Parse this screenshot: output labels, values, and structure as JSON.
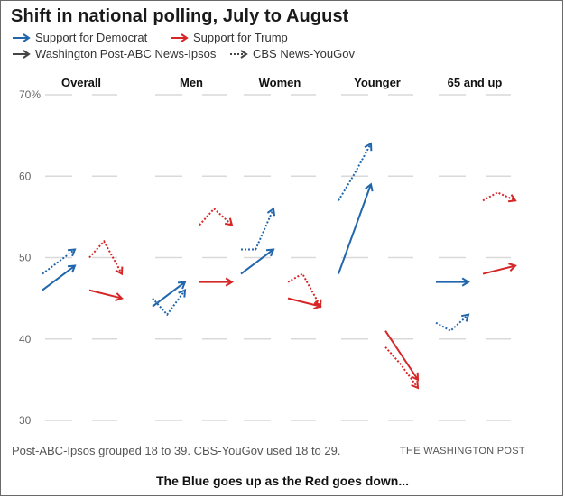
{
  "chart_data": {
    "type": "line",
    "title": "Shift in national polling, July to August",
    "legend": {
      "democrat": "Support for Democrat",
      "trump": "Support for Trump",
      "wapo": "Washington Post-ABC News-Ipsos",
      "cbs": "CBS News-YouGov"
    },
    "y_ticks": [
      "70%",
      "60",
      "50",
      "40",
      "30"
    ],
    "ylim": [
      30,
      70
    ],
    "groups": [
      "Overall",
      "Men",
      "Women",
      "Younger",
      "65 and up"
    ],
    "series": [
      {
        "group": "Overall",
        "candidate": "democrat",
        "poll": "wapo",
        "from": 46,
        "to": 49
      },
      {
        "group": "Overall",
        "candidate": "democrat",
        "poll": "cbs",
        "from": 48,
        "to": 51
      },
      {
        "group": "Overall",
        "candidate": "trump",
        "poll": "wapo",
        "from": 46,
        "to": 45
      },
      {
        "group": "Overall",
        "candidate": "trump",
        "poll": "cbs",
        "from": 50,
        "to": 52,
        "to2": 48
      },
      {
        "group": "Men",
        "candidate": "democrat",
        "poll": "wapo",
        "from": 44,
        "to": 47
      },
      {
        "group": "Men",
        "candidate": "democrat",
        "poll": "cbs",
        "from": 45,
        "to": 43,
        "to2": 46
      },
      {
        "group": "Men",
        "candidate": "trump",
        "poll": "wapo",
        "from": 47,
        "to": 47
      },
      {
        "group": "Men",
        "candidate": "trump",
        "poll": "cbs",
        "from": 54,
        "to": 56,
        "to2": 54
      },
      {
        "group": "Women",
        "candidate": "democrat",
        "poll": "wapo",
        "from": 48,
        "to": 51
      },
      {
        "group": "Women",
        "candidate": "democrat",
        "poll": "cbs",
        "from": 51,
        "to": 51,
        "to2": 56
      },
      {
        "group": "Women",
        "candidate": "trump",
        "poll": "wapo",
        "from": 45,
        "to": 44
      },
      {
        "group": "Women",
        "candidate": "trump",
        "poll": "cbs",
        "from": 47,
        "to": 48,
        "to2": 44
      },
      {
        "group": "Younger",
        "candidate": "democrat",
        "poll": "wapo",
        "from": 48,
        "to": 59
      },
      {
        "group": "Younger",
        "candidate": "democrat",
        "poll": "cbs",
        "from": 57,
        "to": 60,
        "to2": 64
      },
      {
        "group": "Younger",
        "candidate": "trump",
        "poll": "wapo",
        "from": 41,
        "to": 35
      },
      {
        "group": "Younger",
        "candidate": "trump",
        "poll": "cbs",
        "from": 39,
        "to": 37,
        "to2": 34
      },
      {
        "group": "65 and up",
        "candidate": "democrat",
        "poll": "wapo",
        "from": 47,
        "to": 47
      },
      {
        "group": "65 and up",
        "candidate": "democrat",
        "poll": "cbs",
        "from": 42,
        "to": 41,
        "to2": 43
      },
      {
        "group": "65 and up",
        "candidate": "trump",
        "poll": "wapo",
        "from": 48,
        "to": 49
      },
      {
        "group": "65 and up",
        "candidate": "trump",
        "poll": "cbs",
        "from": 57,
        "to": 58,
        "to2": 57
      }
    ],
    "colors": {
      "democrat": "#2166ac",
      "trump": "#d62728",
      "neutral": "#444444",
      "grid": "#d9d9d9"
    },
    "grid": true
  },
  "footer": {
    "note": "Post-ABC-Ipsos grouped 18 to 39. CBS-YouGov used 18 to 29.",
    "source": "THE WASHINGTON POST",
    "caption": "The Blue goes up as the Red goes down..."
  }
}
